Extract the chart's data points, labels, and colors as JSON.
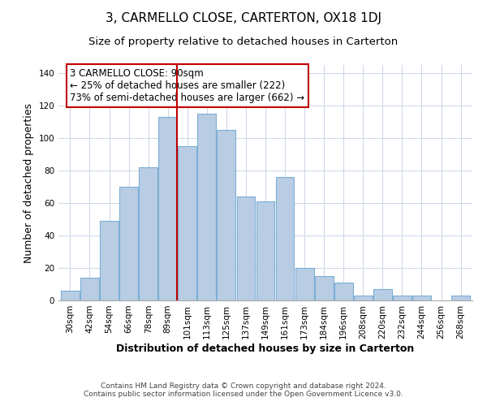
{
  "title": "3, CARMELLO CLOSE, CARTERTON, OX18 1DJ",
  "subtitle": "Size of property relative to detached houses in Carterton",
  "xlabel": "Distribution of detached houses by size in Carterton",
  "ylabel": "Number of detached properties",
  "footer_line1": "Contains HM Land Registry data © Crown copyright and database right 2024.",
  "footer_line2": "Contains public sector information licensed under the Open Government Licence v3.0.",
  "annotation_line1": "3 CARMELLO CLOSE: 90sqm",
  "annotation_line2": "← 25% of detached houses are smaller (222)",
  "annotation_line3": "73% of semi-detached houses are larger (662) →",
  "bar_labels": [
    "30sqm",
    "42sqm",
    "54sqm",
    "66sqm",
    "78sqm",
    "89sqm",
    "101sqm",
    "113sqm",
    "125sqm",
    "137sqm",
    "149sqm",
    "161sqm",
    "173sqm",
    "184sqm",
    "196sqm",
    "208sqm",
    "220sqm",
    "232sqm",
    "244sqm",
    "256sqm",
    "268sqm"
  ],
  "bar_values": [
    6,
    14,
    49,
    70,
    82,
    113,
    95,
    115,
    105,
    64,
    61,
    76,
    20,
    15,
    11,
    3,
    7,
    3,
    3,
    0,
    3
  ],
  "bar_color": "#b8cce4",
  "bar_edge_color": "#7bafd4",
  "highlight_index": 5,
  "highlight_line_color": "#c00000",
  "ylim": [
    0,
    145
  ],
  "yticks": [
    0,
    20,
    40,
    60,
    80,
    100,
    120,
    140
  ],
  "bg_color": "#ffffff",
  "grid_color": "#d0d8e8",
  "title_fontsize": 11,
  "subtitle_fontsize": 9.5,
  "axis_label_fontsize": 9,
  "tick_fontsize": 7.5,
  "footer_fontsize": 6.5,
  "annotation_fontsize": 8.5
}
